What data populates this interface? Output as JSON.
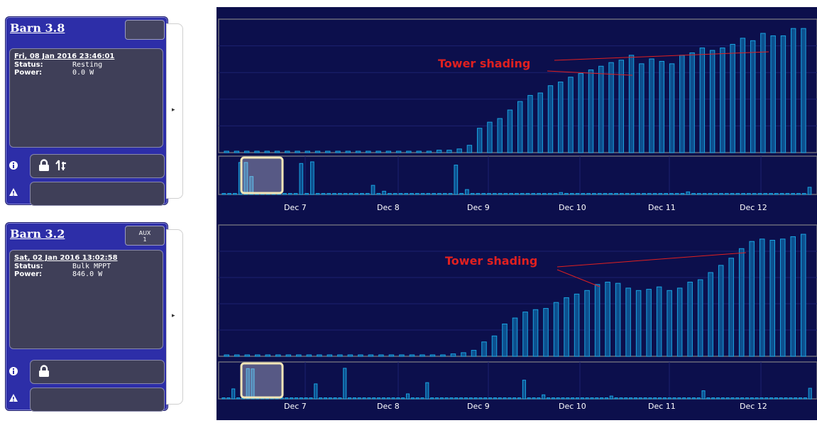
{
  "panels": [
    {
      "name": "Barn 3.8",
      "title_btn": "",
      "timestamp": "Fri, 08 Jan 2016 23:46:01",
      "status_label": "Status:",
      "status_value": "Resting",
      "power_label": "Power:",
      "power_value": "0.0 W",
      "icons": [
        "info-icon",
        "lock-icon",
        "flow-arrows-icon",
        "warning-icon"
      ],
      "annotation": "Tower shading"
    },
    {
      "name": "Barn 3.2",
      "title_btn_line1": "AUX",
      "title_btn_line2": "1",
      "timestamp": "Sat, 02 Jan 2016 13:02:58",
      "status_label": "Status:",
      "status_value": "Bulk MPPT",
      "power_label": "Power:",
      "power_value": "846.0 W",
      "icons": [
        "info-icon",
        "lock-icon",
        "warning-icon"
      ],
      "annotation": "Tower shading"
    }
  ],
  "colors": {
    "accent": "#2d2ea8",
    "chart_bg": "#0c0f4c",
    "bar": "#1aa3e0",
    "annotation": "#e02020",
    "brush": "#f2e6b8"
  },
  "chart_data": [
    {
      "type": "bar",
      "x_ticks": [
        "Dec 7",
        "Dec 8",
        "Dec 9",
        "Dec 10",
        "Dec 11",
        "Dec 12"
      ],
      "main_values": [
        0,
        0,
        0,
        0,
        0,
        0,
        0,
        0,
        0,
        0,
        0,
        0,
        0,
        0,
        0,
        0,
        0,
        0,
        0,
        0,
        0,
        2,
        2,
        3,
        6,
        20,
        25,
        28,
        35,
        42,
        47,
        49,
        55,
        58,
        62,
        65,
        68,
        71,
        74,
        76,
        80,
        73,
        77,
        75,
        73,
        80,
        82,
        86,
        84,
        86,
        89,
        94,
        92,
        98,
        96,
        96,
        102,
        102
      ],
      "overview_values": [
        0,
        0,
        0,
        98,
        98,
        55,
        0,
        0,
        0,
        0,
        0,
        0,
        0,
        0,
        95,
        0,
        100,
        0,
        0,
        0,
        0,
        0,
        0,
        0,
        0,
        0,
        0,
        28,
        0,
        10,
        0,
        0,
        0,
        0,
        0,
        0,
        0,
        0,
        0,
        0,
        0,
        0,
        90,
        0,
        15,
        0,
        0,
        0,
        0,
        0,
        0,
        0,
        0,
        0,
        0,
        0,
        0,
        0,
        0,
        0,
        0,
        6,
        0,
        0,
        0,
        0,
        0,
        0,
        0,
        0,
        0,
        0,
        0,
        0,
        0,
        0,
        0,
        0,
        0,
        0,
        0,
        0,
        0,
        0,
        8,
        0,
        0,
        0,
        0,
        0,
        0,
        0,
        0,
        0,
        0,
        0,
        0,
        0,
        0,
        0,
        0,
        0,
        0,
        0,
        0,
        0,
        22
      ]
    },
    {
      "type": "bar",
      "x_ticks": [
        "Dec 7",
        "Dec 8",
        "Dec 9",
        "Dec 10",
        "Dec 11",
        "Dec 12"
      ],
      "main_values": [
        0,
        0,
        0,
        0,
        0,
        0,
        0,
        0,
        0,
        0,
        0,
        0,
        0,
        0,
        0,
        0,
        0,
        0,
        0,
        0,
        0,
        0,
        2,
        3,
        5,
        12,
        17,
        27,
        32,
        37,
        39,
        40,
        45,
        49,
        52,
        55,
        60,
        62,
        61,
        57,
        55,
        56,
        58,
        55,
        57,
        62,
        64,
        70,
        76,
        82,
        90,
        96,
        98,
        97,
        98,
        100,
        102
      ],
      "overview_values": [
        0,
        0,
        32,
        0,
        0,
        97,
        96,
        0,
        0,
        0,
        0,
        0,
        0,
        0,
        0,
        0,
        0,
        0,
        0,
        48,
        0,
        0,
        0,
        0,
        0,
        98,
        0,
        0,
        0,
        0,
        0,
        0,
        0,
        0,
        0,
        0,
        0,
        0,
        16,
        0,
        0,
        0,
        52,
        0,
        0,
        0,
        0,
        0,
        0,
        0,
        0,
        0,
        0,
        0,
        0,
        0,
        0,
        0,
        0,
        0,
        0,
        0,
        60,
        0,
        0,
        0,
        13,
        0,
        0,
        0,
        0,
        0,
        0,
        0,
        0,
        0,
        0,
        0,
        0,
        0,
        9,
        0,
        0,
        0,
        0,
        0,
        0,
        0,
        0,
        0,
        0,
        0,
        0,
        0,
        0,
        0,
        0,
        0,
        0,
        26,
        0,
        0,
        0,
        0,
        0,
        0,
        0,
        0,
        0,
        0,
        0,
        0,
        0,
        0,
        0,
        0,
        0,
        0,
        0,
        0,
        0,
        34
      ]
    }
  ]
}
